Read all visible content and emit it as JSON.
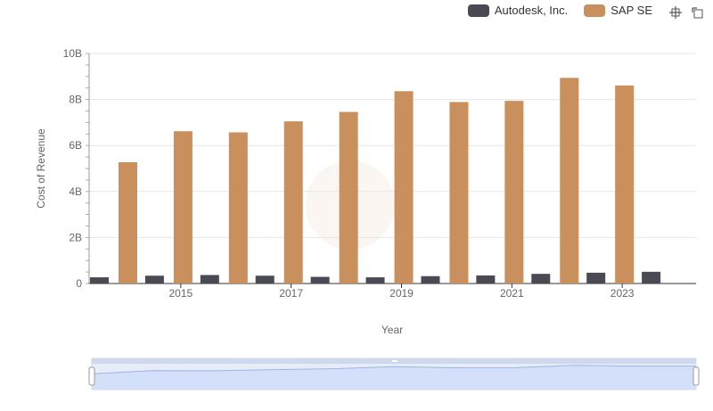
{
  "chart_data": {
    "type": "bar",
    "xlabel": "Year",
    "ylabel": "Cost of Revenue",
    "ylim": [
      0,
      10000000000
    ],
    "y_ticks": [
      "0",
      "2B",
      "4B",
      "6B",
      "8B",
      "10B"
    ],
    "y_tick_values": [
      0,
      2000000000,
      4000000000,
      6000000000,
      8000000000,
      10000000000
    ],
    "x_tick_labels": [
      "2015",
      "2017",
      "2019",
      "2021",
      "2023"
    ],
    "categories": [
      "2014",
      "2015",
      "2016",
      "2017",
      "2018",
      "2019",
      "2020",
      "2021",
      "2022",
      "2023",
      "2024"
    ],
    "grid": true,
    "legend_position": "top-right",
    "series": [
      {
        "name": "Autodesk, Inc.",
        "color": "#4a4a55",
        "values": [
          270000000,
          340000000,
          370000000,
          340000000,
          290000000,
          270000000,
          320000000,
          350000000,
          420000000,
          470000000,
          510000000
        ]
      },
      {
        "name": "SAP SE",
        "color": "#c98f5c",
        "values": [
          5270000000,
          6620000000,
          6570000000,
          7050000000,
          7460000000,
          8360000000,
          7890000000,
          7940000000,
          8940000000,
          8610000000,
          null
        ]
      }
    ]
  },
  "toolbar": {
    "icons": [
      "crosshair-icon",
      "reset-icon"
    ]
  }
}
